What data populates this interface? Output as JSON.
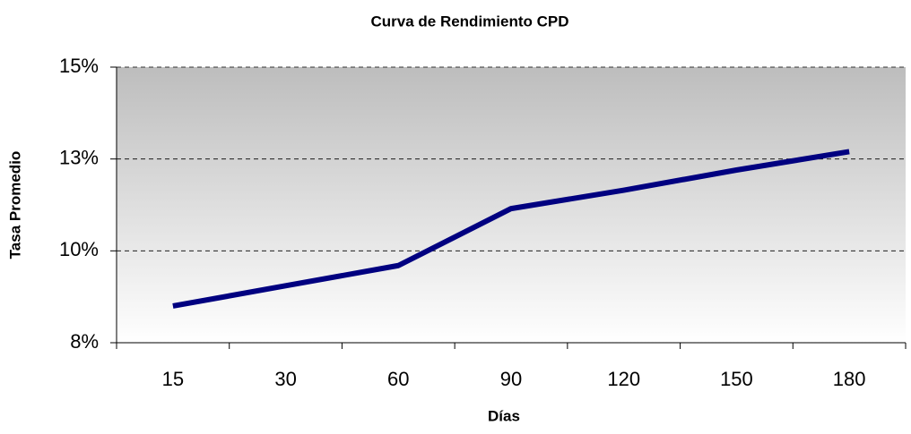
{
  "chart_data": {
    "type": "line",
    "title": "Curva de Rendimiento CPD",
    "x_label": "Días",
    "y_label": "Tasa Promedio",
    "categories": [
      "15",
      "30",
      "60",
      "90",
      "120",
      "150",
      "180"
    ],
    "series": [
      {
        "name": "Tasa Promedio",
        "color": "#000080",
        "values": [
          8.5,
          9.05,
          9.6,
          11.15,
          11.65,
          12.2,
          12.7
        ]
      }
    ],
    "ylim": [
      7.5,
      15
    ],
    "yticks": [
      {
        "value": 7.5,
        "label": "8%"
      },
      {
        "value": 10,
        "label": "10%"
      },
      {
        "value": 12.5,
        "label": "13%"
      },
      {
        "value": 15,
        "label": "15%"
      }
    ],
    "grid": true
  }
}
